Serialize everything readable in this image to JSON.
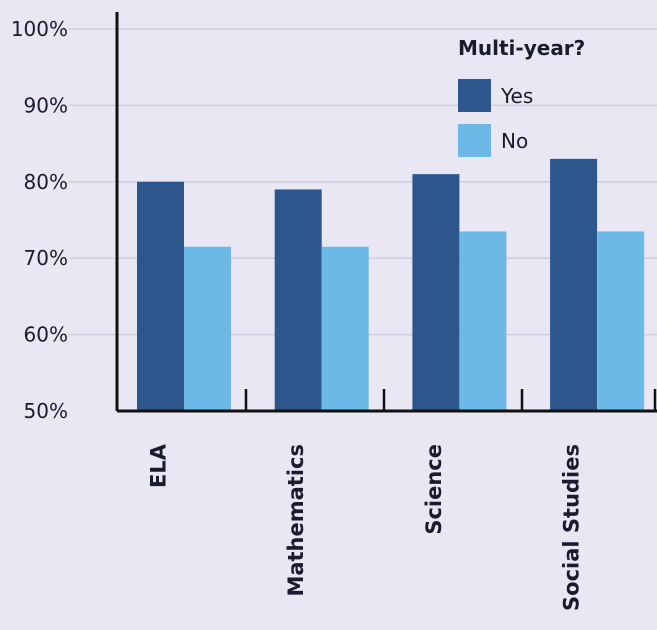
{
  "chart_data": {
    "type": "bar",
    "categories": [
      "ELA",
      "Mathematics",
      "Science",
      "Social Studies"
    ],
    "series": [
      {
        "name": "Yes",
        "color": "#2c568c",
        "values": [
          80,
          79,
          81,
          83
        ]
      },
      {
        "name": "No",
        "color": "#6cb8e6",
        "values": [
          71.5,
          71.5,
          73.5,
          73.5
        ]
      }
    ],
    "legend_title": "Multi-year?",
    "legend_position": "top-right",
    "ylim": [
      50,
      100
    ],
    "yticks": [
      50,
      60,
      70,
      80,
      90,
      100
    ],
    "ytick_labels": [
      "50%",
      "60%",
      "70%",
      "80%",
      "90%",
      "100%"
    ],
    "grid": true,
    "xlabel": "",
    "ylabel": "",
    "title": ""
  }
}
